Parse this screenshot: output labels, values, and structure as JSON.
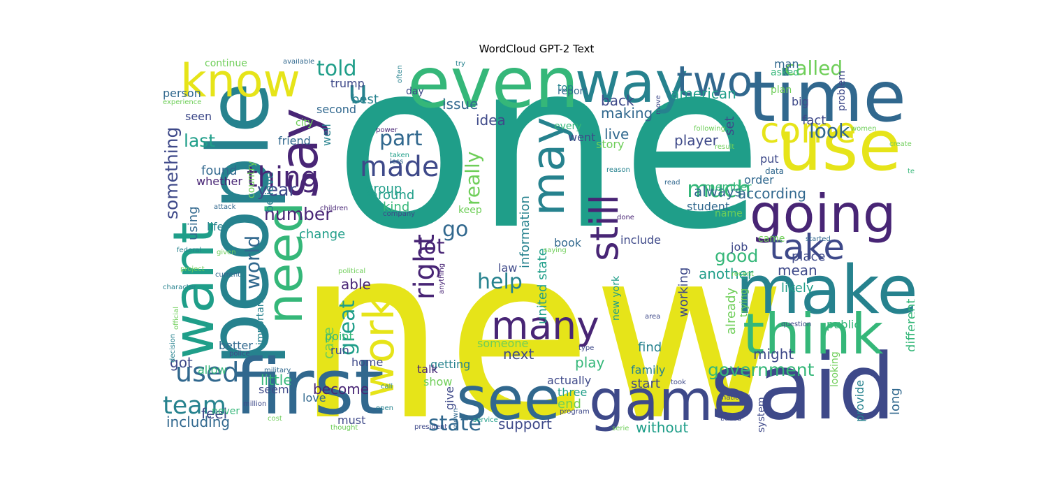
{
  "title": "WordCloud GPT-2 Text",
  "colors": {
    "purple": "#482575",
    "indigo": "#3e4989",
    "blue": "#31688e",
    "teal": "#26828e",
    "green": "#1f9e89",
    "lime": "#35b779",
    "yellowgreen": "#6ece58",
    "yellow": "#e6e419"
  },
  "words": [
    {
      "text": "one",
      "c": "green"
    },
    {
      "text": "new",
      "c": "yellow"
    },
    {
      "text": "people",
      "c": "teal"
    },
    {
      "text": "said",
      "c": "indigo"
    },
    {
      "text": "first",
      "c": "blue"
    },
    {
      "text": "even",
      "c": "lime"
    },
    {
      "text": "time",
      "c": "blue"
    },
    {
      "text": "use",
      "c": "yellow"
    },
    {
      "text": "make",
      "c": "teal"
    },
    {
      "text": "think",
      "c": "lime"
    },
    {
      "text": "game",
      "c": "indigo"
    },
    {
      "text": "see",
      "c": "blue"
    },
    {
      "text": "say",
      "c": "purple"
    },
    {
      "text": "way",
      "c": "teal"
    },
    {
      "text": "want",
      "c": "green"
    },
    {
      "text": "need",
      "c": "lime"
    },
    {
      "text": "going",
      "c": "purple"
    },
    {
      "text": "know",
      "c": "yellow"
    },
    {
      "text": "may",
      "c": "teal"
    },
    {
      "text": "work",
      "c": "yellow"
    },
    {
      "text": "many",
      "c": "purple"
    },
    {
      "text": "two",
      "c": "blue"
    },
    {
      "text": "come",
      "c": "yellow"
    },
    {
      "text": "still",
      "c": "purple"
    },
    {
      "text": "take",
      "c": "indigo"
    },
    {
      "text": "u",
      "c": "teal"
    },
    {
      "text": "made",
      "c": "indigo"
    },
    {
      "text": "thing",
      "c": "purple"
    },
    {
      "text": "used",
      "c": "blue"
    },
    {
      "text": "team",
      "c": "teal"
    },
    {
      "text": "much",
      "c": "lime"
    },
    {
      "text": "right",
      "c": "purple"
    },
    {
      "text": "called",
      "c": "yellowgreen"
    },
    {
      "text": "help",
      "c": "teal"
    },
    {
      "text": "told",
      "c": "green"
    },
    {
      "text": "part",
      "c": "blue"
    },
    {
      "text": "look",
      "c": "blue"
    },
    {
      "text": "world",
      "c": "blue"
    },
    {
      "text": "number",
      "c": "purple"
    },
    {
      "text": "year",
      "c": "indigo"
    },
    {
      "text": "last",
      "c": "green"
    },
    {
      "text": "go",
      "c": "blue"
    },
    {
      "text": "lot",
      "c": "purple"
    },
    {
      "text": "good",
      "c": "lime"
    },
    {
      "text": "government",
      "c": "lime"
    },
    {
      "text": "state",
      "c": "blue"
    },
    {
      "text": "really",
      "c": "yellowgreen"
    },
    {
      "text": "something",
      "c": "indigo"
    },
    {
      "text": "great",
      "c": "green"
    },
    {
      "text": "including",
      "c": "blue"
    },
    {
      "text": "first",
      "c": "blue"
    },
    {
      "text": "american",
      "c": "green"
    },
    {
      "text": "back",
      "c": "indigo"
    },
    {
      "text": "making",
      "c": "blue"
    },
    {
      "text": "live",
      "c": "blue"
    },
    {
      "text": "player",
      "c": "indigo"
    },
    {
      "text": "according",
      "c": "blue"
    },
    {
      "text": "always",
      "c": "blue"
    },
    {
      "text": "another",
      "c": "green"
    },
    {
      "text": "mean",
      "c": "indigo"
    },
    {
      "text": "likely",
      "c": "green"
    },
    {
      "text": "able",
      "c": "purple"
    },
    {
      "text": "work",
      "c": "yellow"
    },
    {
      "text": "support",
      "c": "indigo"
    },
    {
      "text": "without",
      "c": "green"
    },
    {
      "text": "feel",
      "c": "indigo"
    },
    {
      "text": "little",
      "c": "lime"
    },
    {
      "text": "become",
      "c": "purple"
    },
    {
      "text": "next",
      "c": "indigo"
    },
    {
      "text": "play",
      "c": "lime"
    },
    {
      "text": "might",
      "c": "indigo"
    },
    {
      "text": "case",
      "c": "yellowgreen"
    },
    {
      "text": "got",
      "c": "indigo"
    },
    {
      "text": "found",
      "c": "blue"
    },
    {
      "text": "change",
      "c": "green"
    },
    {
      "text": "group",
      "c": "green"
    },
    {
      "text": "around",
      "c": "green"
    },
    {
      "text": "kind",
      "c": "lime"
    },
    {
      "text": "issue",
      "c": "blue"
    },
    {
      "text": "idea",
      "c": "indigo"
    },
    {
      "text": "best",
      "c": "teal"
    },
    {
      "text": "person",
      "c": "blue"
    },
    {
      "text": "fact",
      "c": "indigo"
    },
    {
      "text": "set",
      "c": "indigo"
    },
    {
      "text": "united state",
      "c": "green"
    },
    {
      "text": "information",
      "c": "teal"
    },
    {
      "text": "working",
      "c": "indigo"
    },
    {
      "text": "different",
      "c": "lime"
    },
    {
      "text": "already",
      "c": "yellowgreen"
    },
    {
      "text": "find",
      "c": "teal"
    },
    {
      "text": "start",
      "c": "indigo"
    },
    {
      "text": "end",
      "c": "yellowgreen"
    },
    {
      "text": "show",
      "c": "yellowgreen"
    },
    {
      "text": "give",
      "c": "indigo"
    },
    {
      "text": "getting",
      "c": "teal"
    },
    {
      "text": "must",
      "c": "indigo"
    },
    {
      "text": "allow",
      "c": "lime"
    },
    {
      "text": "seem",
      "c": "indigo"
    },
    {
      "text": "better",
      "c": "blue"
    },
    {
      "text": "important",
      "c": "teal"
    },
    {
      "text": "point",
      "c": "lime"
    },
    {
      "text": "using",
      "c": "blue"
    },
    {
      "text": "believe",
      "c": "teal"
    },
    {
      "text": "country",
      "c": "yellowgreen"
    },
    {
      "text": "whether",
      "c": "purple"
    },
    {
      "text": "life",
      "c": "teal"
    },
    {
      "text": "seen",
      "c": "indigo"
    },
    {
      "text": "continue",
      "c": "yellowgreen"
    },
    {
      "text": "trump",
      "c": "indigo"
    },
    {
      "text": "second",
      "c": "blue"
    },
    {
      "text": "city",
      "c": "yellowgreen"
    },
    {
      "text": "day",
      "c": "indigo"
    },
    {
      "text": "friend",
      "c": "blue"
    },
    {
      "text": "well",
      "c": "teal"
    },
    {
      "text": "run",
      "c": "indigo"
    },
    {
      "text": "home",
      "c": "indigo"
    },
    {
      "text": "love",
      "c": "blue"
    },
    {
      "text": "talk",
      "c": "purple"
    },
    {
      "text": "never",
      "c": "lime"
    },
    {
      "text": "someone",
      "c": "yellowgreen"
    },
    {
      "text": "three",
      "c": "green"
    },
    {
      "text": "actually",
      "c": "indigo"
    },
    {
      "text": "every",
      "c": "lime"
    },
    {
      "text": "went",
      "c": "indigo"
    },
    {
      "text": "story",
      "c": "yellowgreen"
    },
    {
      "text": "top",
      "c": "teal"
    },
    {
      "text": "report",
      "c": "blue"
    },
    {
      "text": "keep",
      "c": "yellowgreen"
    },
    {
      "text": "put",
      "c": "indigo"
    },
    {
      "text": "order",
      "c": "blue"
    },
    {
      "text": "member",
      "c": "lime"
    },
    {
      "text": "student",
      "c": "blue"
    },
    {
      "text": "name",
      "c": "yellowgreen"
    },
    {
      "text": "include",
      "c": "indigo"
    },
    {
      "text": "book",
      "c": "blue"
    },
    {
      "text": "law",
      "c": "indigo"
    },
    {
      "text": "job",
      "c": "indigo"
    },
    {
      "text": "came",
      "c": "yellowgreen"
    },
    {
      "text": "place",
      "c": "indigo"
    },
    {
      "text": "new york",
      "c": "green"
    },
    {
      "text": "family",
      "c": "teal"
    },
    {
      "text": "public",
      "c": "lime"
    },
    {
      "text": "trying",
      "c": "yellowgreen"
    },
    {
      "text": "looking",
      "c": "yellowgreen"
    },
    {
      "text": "system",
      "c": "indigo"
    },
    {
      "text": "provide",
      "c": "teal"
    },
    {
      "text": "long",
      "c": "blue"
    },
    {
      "text": "man",
      "c": "blue"
    },
    {
      "text": "asked",
      "c": "lime"
    },
    {
      "text": "plan",
      "c": "yellowgreen"
    },
    {
      "text": "big",
      "c": "indigo"
    },
    {
      "text": "problem",
      "c": "indigo"
    },
    {
      "text": "data",
      "c": "blue"
    },
    {
      "text": "create",
      "c": "yellowgreen"
    },
    {
      "text": "tell",
      "c": "lime"
    },
    {
      "text": "following",
      "c": "yellowgreen"
    },
    {
      "text": "result",
      "c": "yellowgreen"
    },
    {
      "text": "women",
      "c": "yellowgreen"
    },
    {
      "text": "move",
      "c": "indigo"
    },
    {
      "text": "reason",
      "c": "teal"
    },
    {
      "text": "read",
      "c": "blue"
    },
    {
      "text": "done",
      "c": "purple"
    },
    {
      "text": "started",
      "c": "blue"
    },
    {
      "text": "recent",
      "c": "yellowgreen"
    },
    {
      "text": "question",
      "c": "indigo"
    },
    {
      "text": "area",
      "c": "indigo"
    },
    {
      "text": "type",
      "c": "indigo"
    },
    {
      "text": "took",
      "c": "indigo"
    },
    {
      "text": "national",
      "c": "indigo"
    },
    {
      "text": "based",
      "c": "indigo"
    },
    {
      "text": "serie",
      "c": "yellowgreen"
    },
    {
      "text": "program",
      "c": "indigo"
    },
    {
      "text": "call",
      "c": "teal"
    },
    {
      "text": "open",
      "c": "teal"
    },
    {
      "text": "million",
      "c": "indigo"
    },
    {
      "text": "cost",
      "c": "yellowgreen"
    },
    {
      "text": "thought",
      "c": "yellowgreen"
    },
    {
      "text": "known",
      "c": "blue"
    },
    {
      "text": "president",
      "c": "indigo"
    },
    {
      "text": "anything",
      "c": "purple"
    },
    {
      "text": "political",
      "c": "yellowgreen"
    },
    {
      "text": "service",
      "c": "green"
    },
    {
      "text": "saying",
      "c": "yellowgreen"
    },
    {
      "text": "power",
      "c": "purple"
    },
    {
      "text": "taken",
      "c": "green"
    },
    {
      "text": "less",
      "c": "blue"
    },
    {
      "text": "company",
      "c": "indigo"
    },
    {
      "text": "children",
      "c": "purple"
    },
    {
      "text": "attack",
      "c": "blue"
    },
    {
      "text": "federal",
      "c": "teal"
    },
    {
      "text": "given",
      "c": "yellowgreen"
    },
    {
      "text": "project",
      "c": "yellowgreen"
    },
    {
      "text": "current",
      "c": "blue"
    },
    {
      "text": "character",
      "c": "teal"
    },
    {
      "text": "official",
      "c": "yellowgreen"
    },
    {
      "text": "decision",
      "c": "teal"
    },
    {
      "text": "police",
      "c": "indigo"
    },
    {
      "text": "military",
      "c": "blue"
    },
    {
      "text": "experience",
      "c": "yellowgreen"
    },
    {
      "text": "available",
      "c": "blue"
    },
    {
      "text": "often",
      "c": "teal"
    },
    {
      "text": "try",
      "c": "teal"
    }
  ]
}
